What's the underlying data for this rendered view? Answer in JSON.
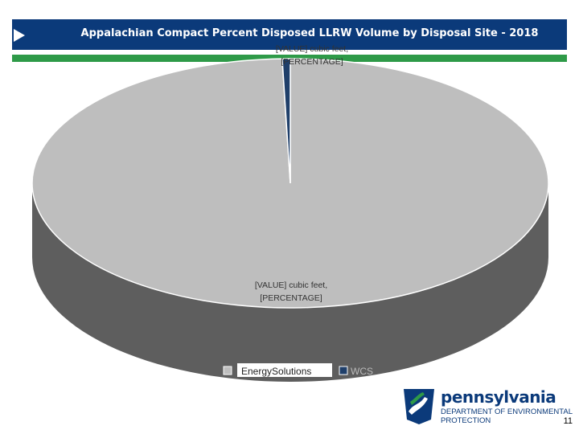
{
  "header": {
    "title": "Appalachian Compact Percent Disposed LLRW Volume by Disposal Site - 2018"
  },
  "chart_data": {
    "type": "pie",
    "style": "3d",
    "title": "Appalachian Compact Percent Disposed LLRW Volume by Disposal Site - 2018",
    "slices": [
      {
        "name": "EnergySolutions",
        "value": 99.5,
        "label_line1": "[VALUE] cubic feet,",
        "label_line2": "[PERCENTAGE]",
        "color": "#bebebe"
      },
      {
        "name": "WCS",
        "value": 0.5,
        "label_line1": "[VALUE] cubic feet,",
        "label_line2": "[PERCENTAGE]",
        "color": "#1f3f6a"
      }
    ],
    "legend": {
      "placement": "bottom",
      "entries": [
        "EnergySolutions",
        "WCS"
      ]
    }
  },
  "colors": {
    "side": "#5e5e5e",
    "top_slice_main": "#bebebe",
    "small_slice": "#1f3f6a"
  },
  "footer": {
    "logo_main": "pennsylvania",
    "logo_sub_line1": "DEPARTMENT OF ENVIRONMENTAL",
    "logo_sub_line2": "PROTECTION",
    "page_number": "11",
    "logo_icon": "pa-keystone-logo-icon"
  }
}
